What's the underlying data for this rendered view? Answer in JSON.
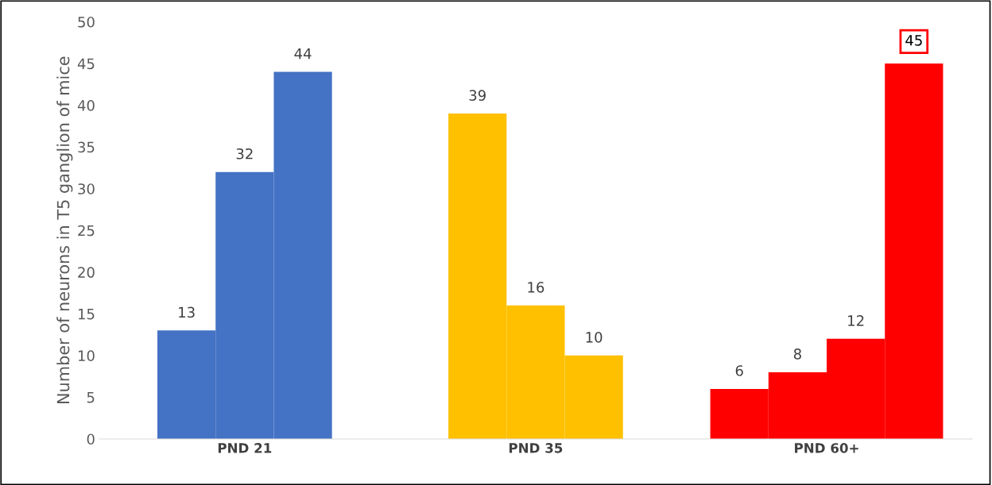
{
  "chart_data": {
    "type": "bar",
    "ylabel": "Number of neurons in T5 ganglion of mice",
    "categories": [
      "PND 21",
      "PND 35",
      "PND 60+"
    ],
    "series": [
      {
        "colors": [
          "#4472c4",
          "#ffc000",
          "#ff0000"
        ],
        "values": [
          13,
          39,
          6
        ],
        "value_labels": [
          "13",
          "39",
          "6"
        ]
      },
      {
        "colors": [
          "#4472c4",
          "#ffc000",
          "#ff0000"
        ],
        "values": [
          32,
          16,
          8
        ],
        "value_labels": [
          "32",
          "16",
          "8"
        ]
      },
      {
        "colors": [
          "#4472c4",
          "#ffc000",
          "#ff0000"
        ],
        "values": [
          44,
          10,
          12
        ],
        "value_labels": [
          "44",
          "10",
          "12"
        ]
      },
      {
        "colors": [
          "#4472c4",
          "#ffc000",
          "#ff0000"
        ],
        "values": [
          null,
          null,
          45
        ],
        "value_labels": [
          null,
          null,
          null
        ]
      }
    ],
    "annotations": [
      "45"
    ],
    "ylim": [
      0,
      50
    ],
    "yticks": [
      0,
      5,
      10,
      15,
      20,
      25,
      30,
      35,
      40,
      45,
      50
    ],
    "grid": false,
    "legend": false
  }
}
